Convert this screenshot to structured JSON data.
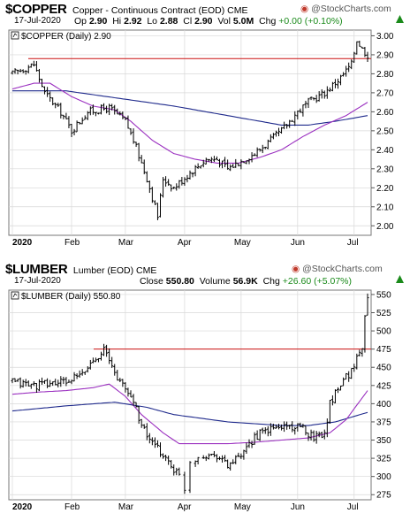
{
  "colors": {
    "price_bar": "#000000",
    "ma_short": "#9b30c0",
    "ma_long": "#1f2a8c",
    "resistance": "#cc1111",
    "grid": "#d8d8d8",
    "change_positive": "#1a8a1a"
  },
  "branding": "@StockCharts.com",
  "chart_data": [
    {
      "type": "ohlc",
      "symbol": "$COPPER",
      "description": "Copper - Continuous Contract (EOD) CME",
      "date": "17-Jul-2020",
      "stats": {
        "open_label": "Op",
        "open": "2.90",
        "high_label": "Hi",
        "high": "2.92",
        "low_label": "Lo",
        "low": "2.88",
        "close_label": "Cl",
        "close": "2.90",
        "volume_label": "Vol",
        "volume": "5.0M",
        "change_label": "Chg",
        "change": "+0.00 (+0.10%)"
      },
      "legend": "$COPPER (Daily) 2.90",
      "ylim": [
        1.95,
        3.03
      ],
      "yticks": [
        "3.00",
        "2.90",
        "2.80",
        "2.70",
        "2.60",
        "2.50",
        "2.40",
        "2.30",
        "2.20",
        "2.10",
        "2.00"
      ],
      "xticks": [
        "2020",
        "Feb",
        "Mar",
        "Apr",
        "May",
        "Jun",
        "Jul"
      ],
      "resistance": 2.88,
      "series": [
        {
          "name": "price",
          "keypoints": [
            [
              0,
              2.8
            ],
            [
              8,
              2.85
            ],
            [
              12,
              2.7
            ],
            [
              18,
              2.6
            ],
            [
              22,
              2.5
            ],
            [
              28,
              2.6
            ],
            [
              36,
              2.62
            ],
            [
              42,
              2.55
            ],
            [
              45,
              2.45
            ],
            [
              50,
              2.25
            ],
            [
              52,
              2.15
            ],
            [
              54,
              2.05
            ],
            [
              56,
              2.25
            ],
            [
              60,
              2.2
            ],
            [
              66,
              2.28
            ],
            [
              72,
              2.35
            ],
            [
              76,
              2.35
            ],
            [
              80,
              2.3
            ],
            [
              86,
              2.35
            ],
            [
              90,
              2.38
            ],
            [
              96,
              2.45
            ],
            [
              100,
              2.5
            ],
            [
              106,
              2.6
            ],
            [
              110,
              2.65
            ],
            [
              116,
              2.7
            ],
            [
              122,
              2.78
            ],
            [
              126,
              2.85
            ],
            [
              128,
              2.98
            ],
            [
              130,
              2.93
            ],
            [
              132,
              2.9
            ]
          ]
        },
        {
          "name": "ma50",
          "keypoints": [
            [
              0,
              2.72
            ],
            [
              8,
              2.75
            ],
            [
              14,
              2.75
            ],
            [
              22,
              2.68
            ],
            [
              30,
              2.63
            ],
            [
              38,
              2.61
            ],
            [
              44,
              2.55
            ],
            [
              52,
              2.45
            ],
            [
              60,
              2.38
            ],
            [
              68,
              2.35
            ],
            [
              76,
              2.33
            ],
            [
              84,
              2.33
            ],
            [
              92,
              2.36
            ],
            [
              100,
              2.4
            ],
            [
              108,
              2.47
            ],
            [
              116,
              2.53
            ],
            [
              124,
              2.58
            ],
            [
              132,
              2.65
            ]
          ]
        },
        {
          "name": "ma200",
          "keypoints": [
            [
              0,
              2.71
            ],
            [
              20,
              2.71
            ],
            [
              40,
              2.67
            ],
            [
              60,
              2.63
            ],
            [
              80,
              2.58
            ],
            [
              100,
              2.53
            ],
            [
              110,
              2.53
            ],
            [
              120,
              2.55
            ],
            [
              132,
              2.58
            ]
          ]
        }
      ]
    },
    {
      "type": "ohlc",
      "symbol": "$LUMBER",
      "description": "Lumber (EOD) CME",
      "date": "17-Jul-2020",
      "stats": {
        "close_label": "Close",
        "close": "550.80",
        "volume_label": "Volume",
        "volume": "56.9K",
        "change_label": "Chg",
        "change": "+26.60 (+5.07%)"
      },
      "legend": "$LUMBER (Daily) 550.80",
      "ylim": [
        268,
        556
      ],
      "yticks": [
        "550",
        "525",
        "500",
        "475",
        "450",
        "425",
        "400",
        "375",
        "350",
        "325",
        "300",
        "275"
      ],
      "xticks": [
        "2020",
        "Feb",
        "Mar",
        "Apr",
        "May",
        "Jun",
        "Jul"
      ],
      "resistance": 475,
      "series": [
        {
          "name": "price",
          "keypoints": [
            [
              0,
              430
            ],
            [
              8,
              425
            ],
            [
              14,
              428
            ],
            [
              20,
              430
            ],
            [
              26,
              440
            ],
            [
              30,
              460
            ],
            [
              34,
              475
            ],
            [
              37,
              450
            ],
            [
              40,
              430
            ],
            [
              44,
              410
            ],
            [
              46,
              395
            ],
            [
              48,
              370
            ],
            [
              52,
              345
            ],
            [
              56,
              330
            ],
            [
              60,
              310
            ],
            [
              62,
              300
            ],
            [
              64,
              285
            ],
            [
              66,
              320
            ],
            [
              70,
              330
            ],
            [
              76,
              330
            ],
            [
              80,
              315
            ],
            [
              86,
              330
            ],
            [
              90,
              355
            ],
            [
              96,
              365
            ],
            [
              102,
              370
            ],
            [
              108,
              365
            ],
            [
              112,
              355
            ],
            [
              116,
              360
            ],
            [
              118,
              400
            ],
            [
              122,
              430
            ],
            [
              126,
              445
            ],
            [
              130,
              480
            ],
            [
              132,
              551
            ]
          ]
        },
        {
          "name": "ma50",
          "keypoints": [
            [
              0,
              413
            ],
            [
              10,
              416
            ],
            [
              20,
              418
            ],
            [
              30,
              422
            ],
            [
              36,
              427
            ],
            [
              42,
              410
            ],
            [
              48,
              385
            ],
            [
              56,
              360
            ],
            [
              62,
              345
            ],
            [
              70,
              345
            ],
            [
              80,
              345
            ],
            [
              90,
              347
            ],
            [
              100,
              350
            ],
            [
              110,
              353
            ],
            [
              118,
              360
            ],
            [
              124,
              378
            ],
            [
              132,
              418
            ]
          ]
        },
        {
          "name": "ma200",
          "keypoints": [
            [
              0,
              390
            ],
            [
              20,
              397
            ],
            [
              38,
              402
            ],
            [
              50,
              395
            ],
            [
              60,
              385
            ],
            [
              80,
              375
            ],
            [
              100,
              370
            ],
            [
              110,
              370
            ],
            [
              120,
              375
            ],
            [
              132,
              388
            ]
          ]
        }
      ]
    }
  ]
}
